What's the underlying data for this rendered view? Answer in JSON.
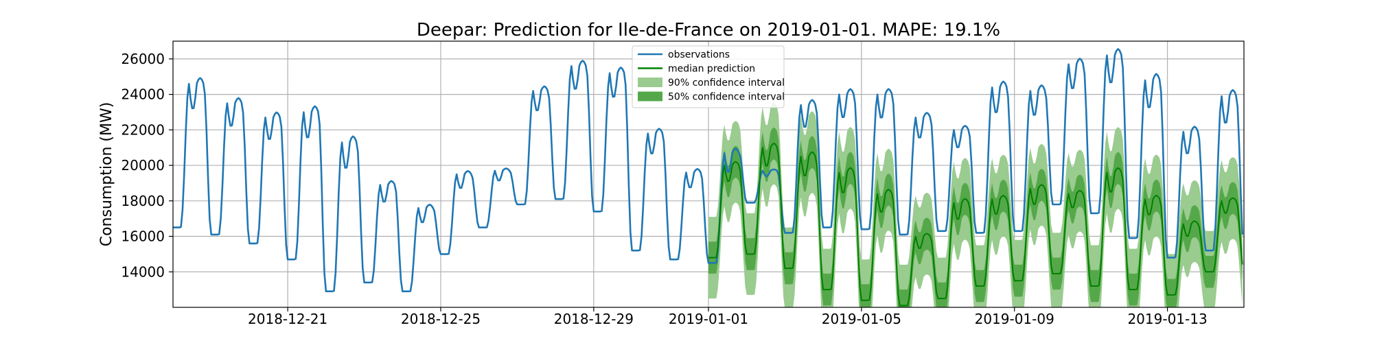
{
  "chart_data": {
    "type": "line",
    "title": "Deepar: Prediction for Ile-de-France on 2019-01-01. MAPE: 19.1%",
    "xlabel": "",
    "ylabel": "Consumption (MW)",
    "x_range": [
      "2018-12-18",
      "2019-01-15"
    ],
    "ylim": [
      12000,
      27000
    ],
    "grid": true,
    "legend_position": "top-center",
    "x_ticks": [
      "2018-12-21",
      "2018-12-25",
      "2018-12-29",
      "2019-01-01",
      "2019-01-05",
      "2019-01-09",
      "2019-01-13"
    ],
    "y_ticks": [
      14000,
      16000,
      18000,
      20000,
      22000,
      24000,
      26000
    ],
    "legend": [
      {
        "label": "observations",
        "kind": "line",
        "color": "#1f77b4"
      },
      {
        "label": "median prediction",
        "kind": "line",
        "color": "#008000"
      },
      {
        "label": "90% confidence interval",
        "kind": "patch",
        "color": "#9acb8f"
      },
      {
        "label": "50% confidence interval",
        "kind": "patch",
        "color": "#55a84a"
      }
    ],
    "series": [
      {
        "name": "observations",
        "color": "#1f77b4",
        "daily_peaks": [
          {
            "date": "2018-12-18",
            "peak": 24600,
            "trough": 16500
          },
          {
            "date": "2018-12-19",
            "peak": 23500,
            "trough": 16100
          },
          {
            "date": "2018-12-20",
            "peak": 22700,
            "trough": 15600
          },
          {
            "date": "2018-12-21",
            "peak": 23000,
            "trough": 14700
          },
          {
            "date": "2018-12-22",
            "peak": 21300,
            "trough": 12900
          },
          {
            "date": "2018-12-23",
            "peak": 18900,
            "trough": 13400
          },
          {
            "date": "2018-12-24",
            "peak": 17600,
            "trough": 12900
          },
          {
            "date": "2018-12-25",
            "peak": 19500,
            "trough": 15000
          },
          {
            "date": "2018-12-26",
            "peak": 19700,
            "trough": 16500
          },
          {
            "date": "2018-12-27",
            "peak": 24200,
            "trough": 17800
          },
          {
            "date": "2018-12-28",
            "peak": 25600,
            "trough": 18100
          },
          {
            "date": "2018-12-29",
            "peak": 25200,
            "trough": 17400
          },
          {
            "date": "2018-12-30",
            "peak": 21800,
            "trough": 15200
          },
          {
            "date": "2018-12-31",
            "peak": 19600,
            "trough": 14700
          },
          {
            "date": "2019-01-01",
            "peak": 20700,
            "trough": 14500
          },
          {
            "date": "2019-01-02",
            "peak": 19700,
            "trough": 17900
          },
          {
            "date": "2019-01-03",
            "peak": 23400,
            "trough": 16200
          },
          {
            "date": "2019-01-04",
            "peak": 24000,
            "trough": 16500
          },
          {
            "date": "2019-01-05",
            "peak": 24000,
            "trough": 16400
          },
          {
            "date": "2019-01-06",
            "peak": 22700,
            "trough": 16100
          },
          {
            "date": "2019-01-07",
            "peak": 22000,
            "trough": 16300
          },
          {
            "date": "2019-01-08",
            "peak": 24400,
            "trough": 16200
          },
          {
            "date": "2019-01-09",
            "peak": 24200,
            "trough": 16300
          },
          {
            "date": "2019-01-10",
            "peak": 25700,
            "trough": 17800
          },
          {
            "date": "2019-01-11",
            "peak": 26200,
            "trough": 17300
          },
          {
            "date": "2019-01-12",
            "peak": 24800,
            "trough": 15900
          },
          {
            "date": "2019-01-13",
            "peak": 21900,
            "trough": 14800
          },
          {
            "date": "2019-01-14",
            "peak": 23900,
            "trough": 15200
          }
        ]
      },
      {
        "name": "median prediction",
        "color": "#008000",
        "daily_peaks": [
          {
            "date": "2019-01-01",
            "peak": 20000,
            "trough": 14800
          },
          {
            "date": "2019-01-02",
            "peak": 21000,
            "trough": 15000
          },
          {
            "date": "2019-01-03",
            "peak": 20500,
            "trough": 14200
          },
          {
            "date": "2019-01-04",
            "peak": 19600,
            "trough": 13000
          },
          {
            "date": "2019-01-05",
            "peak": 18400,
            "trough": 12400
          },
          {
            "date": "2019-01-06",
            "peak": 16000,
            "trough": 12100
          },
          {
            "date": "2019-01-07",
            "peak": 17900,
            "trough": 12500
          },
          {
            "date": "2019-01-08",
            "peak": 18100,
            "trough": 13200
          },
          {
            "date": "2019-01-09",
            "peak": 18700,
            "trough": 13500
          },
          {
            "date": "2019-01-10",
            "peak": 18400,
            "trough": 13900
          },
          {
            "date": "2019-01-11",
            "peak": 19600,
            "trough": 13200
          },
          {
            "date": "2019-01-12",
            "peak": 18100,
            "trough": 13000
          },
          {
            "date": "2019-01-13",
            "peak": 16700,
            "trough": 12700
          },
          {
            "date": "2019-01-14",
            "peak": 18000,
            "trough": 14000
          }
        ]
      }
    ],
    "band_half_width": {
      "ci90": 2300,
      "ci50": 900
    }
  }
}
